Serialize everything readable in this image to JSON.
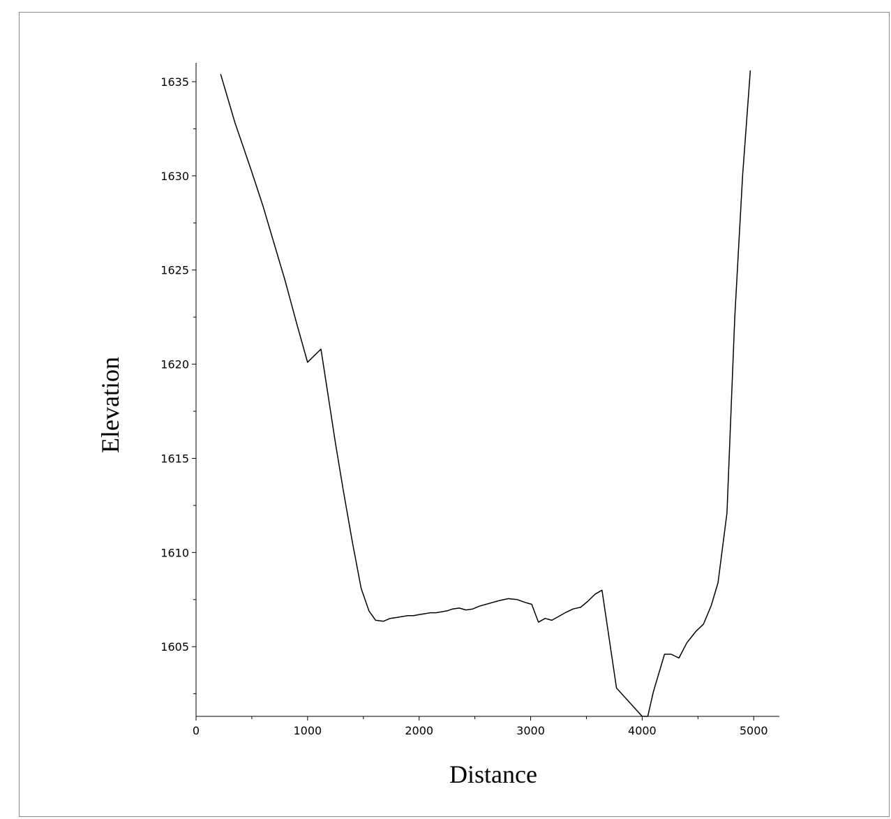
{
  "chart_data": {
    "type": "line",
    "title": "",
    "xlabel": "Distance",
    "ylabel": "Elevation",
    "xlim": [
      0,
      5230
    ],
    "ylim": [
      1601.3,
      1636
    ],
    "xticks": [
      0,
      1000,
      2000,
      3000,
      4000,
      5000
    ],
    "yticks": [
      1605,
      1610,
      1615,
      1620,
      1625,
      1630,
      1635
    ],
    "grid": false,
    "line_color": "#000000",
    "series": [
      {
        "x": [
          220,
          280,
          350,
          420,
          500,
          600,
          700,
          800,
          900,
          1000,
          1120,
          1180,
          1250,
          1320,
          1400,
          1480,
          1550,
          1610,
          1680,
          1740,
          1800,
          1850,
          1900,
          1950,
          2000,
          2050,
          2100,
          2150,
          2200,
          2250,
          2300,
          2360,
          2420,
          2480,
          2540,
          2600,
          2660,
          2720,
          2800,
          2880,
          2950,
          3010,
          3070,
          3130,
          3190,
          3250,
          3310,
          3380,
          3450,
          3510,
          3580,
          3640,
          3770,
          4000,
          4050,
          4100,
          4200,
          4260,
          4330,
          4400,
          4480,
          4550,
          4620,
          4680,
          4760,
          4830,
          4900,
          4970
        ],
        "y": [
          1635.4,
          1634.2,
          1632.8,
          1631.6,
          1630.2,
          1628.4,
          1626.4,
          1624.4,
          1622.2,
          1620.1,
          1620.8,
          1618.5,
          1615.8,
          1613.3,
          1610.6,
          1608.1,
          1606.9,
          1606.4,
          1606.35,
          1606.5,
          1606.55,
          1606.6,
          1606.65,
          1606.65,
          1606.7,
          1606.75,
          1606.8,
          1606.8,
          1606.85,
          1606.9,
          1607.0,
          1607.05,
          1606.95,
          1607.0,
          1607.15,
          1607.25,
          1607.35,
          1607.45,
          1607.55,
          1607.5,
          1607.35,
          1607.25,
          1606.3,
          1606.5,
          1606.4,
          1606.6,
          1606.8,
          1607.0,
          1607.1,
          1607.4,
          1607.8,
          1608.0,
          1602.8,
          1601.3,
          1601.3,
          1602.6,
          1604.6,
          1604.6,
          1604.4,
          1605.2,
          1605.8,
          1606.2,
          1607.2,
          1608.4,
          1612.1,
          1622.5,
          1630.0,
          1635.6
        ]
      }
    ]
  }
}
